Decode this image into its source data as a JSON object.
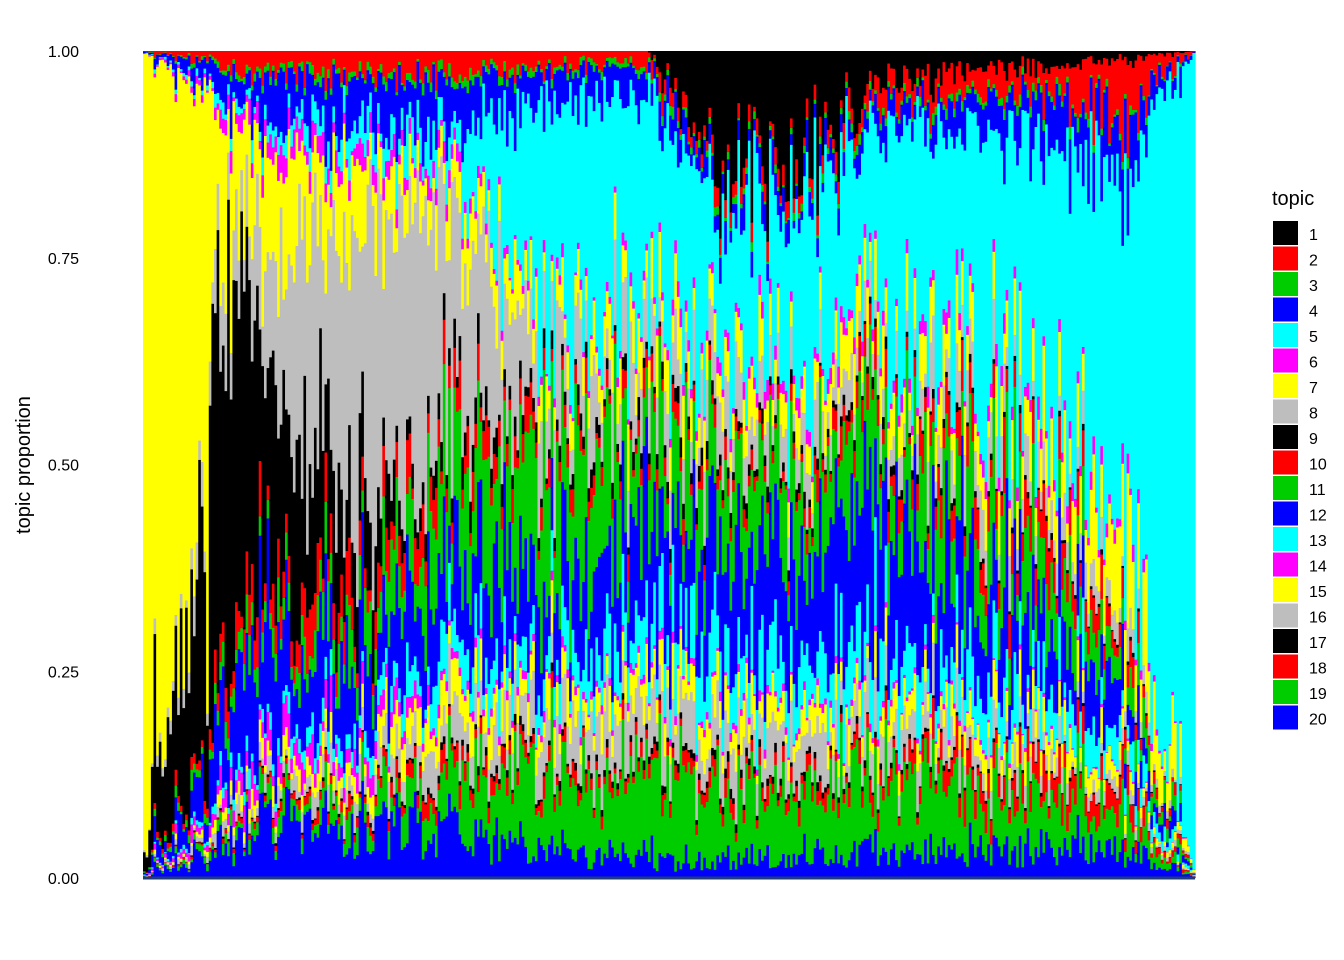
{
  "chart_data": {
    "type": "area",
    "stacking": "stacked to 1 (topic proportions)",
    "xlabel": "",
    "ylabel": "topic proportion",
    "ylim": [
      0,
      1
    ],
    "yticks": [
      "0.00",
      "0.25",
      "0.50",
      "0.75",
      "1.00"
    ],
    "grid": false,
    "legend": {
      "title": "topic",
      "placement": "right"
    },
    "n_bars": 400,
    "series": [
      {
        "name": "1",
        "color": "#000000",
        "values": [
          [
            0,
            0
          ],
          [
            0.35,
            0
          ],
          [
            0.48,
            0
          ],
          [
            0.55,
            0.18
          ],
          [
            0.62,
            0.2
          ],
          [
            0.7,
            0.05
          ],
          [
            1,
            0
          ]
        ]
      },
      {
        "name": "2",
        "color": "#ff0000",
        "values": [
          [
            0,
            0
          ],
          [
            0.15,
            0.04
          ],
          [
            0.3,
            0.03
          ],
          [
            0.5,
            0.02
          ],
          [
            0.85,
            0.04
          ],
          [
            0.92,
            0.08
          ],
          [
            1,
            0
          ]
        ]
      },
      {
        "name": "3",
        "color": "#00cd00",
        "values": [
          [
            0,
            0
          ],
          [
            0.12,
            0.01
          ],
          [
            0.4,
            0.01
          ],
          [
            0.6,
            0.01
          ],
          [
            0.9,
            0.01
          ],
          [
            1,
            0
          ]
        ]
      },
      {
        "name": "4",
        "color": "#0000ff",
        "values": [
          [
            0,
            0
          ],
          [
            0.08,
            0.05
          ],
          [
            0.2,
            0.08
          ],
          [
            0.4,
            0.05
          ],
          [
            0.7,
            0.03
          ],
          [
            0.92,
            0.08
          ],
          [
            1,
            0
          ]
        ]
      },
      {
        "name": "5",
        "color": "#00ffff",
        "values": [
          [
            0,
            0
          ],
          [
            0.3,
            0.05
          ],
          [
            0.4,
            0.45
          ],
          [
            0.55,
            0.3
          ],
          [
            0.75,
            0.35
          ],
          [
            0.93,
            0.5
          ],
          [
            0.97,
            0.9
          ],
          [
            1,
            1
          ]
        ]
      },
      {
        "name": "6",
        "color": "#ff00ff",
        "values": [
          [
            0,
            0
          ],
          [
            0.15,
            0.03
          ],
          [
            0.35,
            0.01
          ],
          [
            0.6,
            0.02
          ],
          [
            0.9,
            0.02
          ],
          [
            1,
            0
          ]
        ]
      },
      {
        "name": "7",
        "color": "#ffff00",
        "values": [
          [
            0,
            1
          ],
          [
            0.06,
            1
          ],
          [
            0.07,
            0.15
          ],
          [
            0.3,
            0.05
          ],
          [
            0.45,
            0.07
          ],
          [
            0.6,
            0.06
          ],
          [
            0.8,
            0.06
          ],
          [
            0.95,
            0.1
          ],
          [
            1,
            0
          ]
        ]
      },
      {
        "name": "8",
        "color": "#bebebe",
        "values": [
          [
            0,
            0
          ],
          [
            0.1,
            0.08
          ],
          [
            0.2,
            0.45
          ],
          [
            0.4,
            0.12
          ],
          [
            0.55,
            0.08
          ],
          [
            0.7,
            0.05
          ],
          [
            0.8,
            0.07
          ],
          [
            1,
            0
          ]
        ]
      },
      {
        "name": "9",
        "color": "#000000",
        "values": [
          [
            0,
            0
          ],
          [
            0.07,
            0.6
          ],
          [
            0.12,
            0.3
          ],
          [
            0.25,
            0.03
          ],
          [
            1,
            0
          ]
        ]
      },
      {
        "name": "10",
        "color": "#ff0000",
        "values": [
          [
            0,
            0
          ],
          [
            0.15,
            0.06
          ],
          [
            0.3,
            0.04
          ],
          [
            0.6,
            0.02
          ],
          [
            0.86,
            0.06
          ],
          [
            1,
            0
          ]
        ]
      },
      {
        "name": "11",
        "color": "#00cd00",
        "values": [
          [
            0,
            0
          ],
          [
            0.25,
            0.08
          ],
          [
            0.4,
            0.2
          ],
          [
            0.55,
            0.12
          ],
          [
            0.75,
            0.14
          ],
          [
            0.85,
            0.1
          ],
          [
            1,
            0
          ]
        ]
      },
      {
        "name": "12",
        "color": "#0000ff",
        "values": [
          [
            0,
            0
          ],
          [
            0.12,
            0.15
          ],
          [
            0.25,
            0.1
          ],
          [
            0.55,
            0.18
          ],
          [
            0.75,
            0.2
          ],
          [
            0.9,
            0.08
          ],
          [
            1,
            0
          ]
        ]
      },
      {
        "name": "13",
        "color": "#00ffff",
        "values": [
          [
            0,
            0
          ],
          [
            0.2,
            0.03
          ],
          [
            0.4,
            0.06
          ],
          [
            0.55,
            0.1
          ],
          [
            0.7,
            0.08
          ],
          [
            0.9,
            0.05
          ],
          [
            1,
            0
          ]
        ]
      },
      {
        "name": "14",
        "color": "#ff00ff",
        "values": [
          [
            0,
            0
          ],
          [
            0.15,
            0.04
          ],
          [
            0.3,
            0.01
          ],
          [
            0.6,
            0.01
          ],
          [
            1,
            0
          ]
        ]
      },
      {
        "name": "15",
        "color": "#ffff00",
        "values": [
          [
            0,
            0
          ],
          [
            0.25,
            0.04
          ],
          [
            0.4,
            0.05
          ],
          [
            0.6,
            0.04
          ],
          [
            0.85,
            0.04
          ],
          [
            1,
            0
          ]
        ]
      },
      {
        "name": "16",
        "color": "#bebebe",
        "values": [
          [
            0,
            0
          ],
          [
            0.3,
            0.05
          ],
          [
            0.45,
            0.08
          ],
          [
            0.7,
            0.06
          ],
          [
            1,
            0
          ]
        ]
      },
      {
        "name": "17",
        "color": "#000000",
        "values": [
          [
            0,
            0
          ],
          [
            0.45,
            0.01
          ],
          [
            0.55,
            0.01
          ],
          [
            1,
            0
          ]
        ]
      },
      {
        "name": "18",
        "color": "#ff0000",
        "values": [
          [
            0,
            0
          ],
          [
            0.3,
            0.02
          ],
          [
            0.6,
            0.02
          ],
          [
            0.88,
            0.04
          ],
          [
            1,
            0
          ]
        ]
      },
      {
        "name": "19",
        "color": "#00cd00",
        "values": [
          [
            0,
            0
          ],
          [
            0.28,
            0.05
          ],
          [
            0.4,
            0.15
          ],
          [
            0.6,
            0.12
          ],
          [
            0.75,
            0.12
          ],
          [
            0.9,
            0.06
          ],
          [
            1,
            0
          ]
        ]
      },
      {
        "name": "20",
        "color": "#0000ff",
        "values": [
          [
            0,
            0
          ],
          [
            0.15,
            0.1
          ],
          [
            0.3,
            0.06
          ],
          [
            0.5,
            0.03
          ],
          [
            0.7,
            0.04
          ],
          [
            0.9,
            0.05
          ],
          [
            1,
            0
          ]
        ]
      }
    ]
  }
}
